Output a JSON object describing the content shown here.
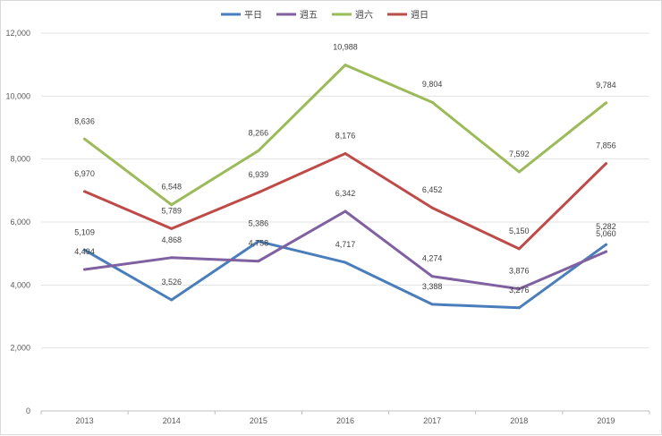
{
  "chart_data": {
    "type": "line",
    "title": "",
    "xlabel": "",
    "ylabel": "",
    "categories": [
      "2013",
      "2014",
      "2015",
      "2016",
      "2017",
      "2018",
      "2019"
    ],
    "ylim": [
      0,
      12000
    ],
    "y_ticks": [
      0,
      2000,
      4000,
      6000,
      8000,
      10000,
      12000
    ],
    "y_tick_labels": [
      "0",
      "2,000",
      "4,000",
      "6,000",
      "8,000",
      "10,000",
      "12,000"
    ],
    "grid": true,
    "legend_position": "top-center",
    "series": [
      {
        "name": "平日",
        "color": "#4a7ebb",
        "values": [
          5109,
          3526,
          5386,
          4717,
          3388,
          3276,
          5282
        ],
        "labels": [
          "5,109",
          "3,526",
          "5,386",
          "4,717",
          "3,388",
          "3,276",
          "5,282"
        ]
      },
      {
        "name": "週五",
        "color": "#7f60a0",
        "values": [
          4494,
          4868,
          4758,
          6342,
          4274,
          3876,
          5060
        ],
        "labels": [
          "4,494",
          "4,868",
          "4,758",
          "6,342",
          "4,274",
          "3,876",
          "5,060"
        ]
      },
      {
        "name": "週六",
        "color": "#9bbb59",
        "values": [
          8636,
          6548,
          8266,
          10988,
          9804,
          7592,
          9784
        ],
        "labels": [
          "8,636",
          "6,548",
          "8,266",
          "10,988",
          "9,804",
          "7,592",
          "9,784"
        ]
      },
      {
        "name": "週日",
        "color": "#be4b48",
        "values": [
          6970,
          5789,
          6939,
          8176,
          6452,
          5150,
          7856
        ],
        "labels": [
          "6,970",
          "5,789",
          "6,939",
          "8,176",
          "6,452",
          "5,150",
          "7,856"
        ]
      }
    ]
  }
}
